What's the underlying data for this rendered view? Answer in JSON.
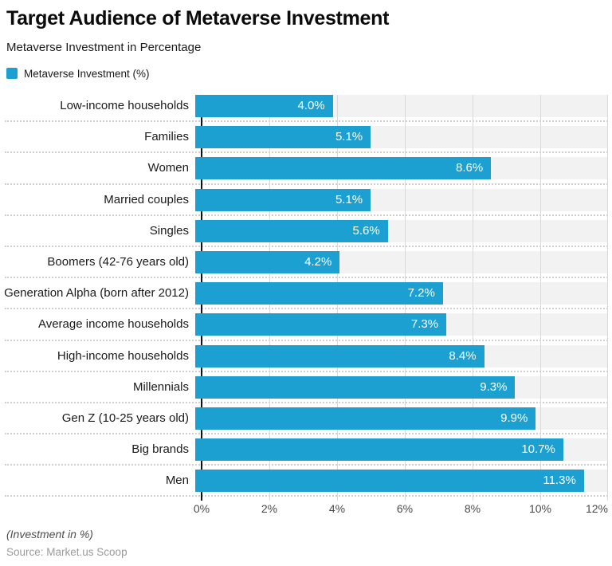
{
  "header": {
    "title": "Target Audience of Metaverse Investment",
    "subtitle": "Metaverse Investment in Percentage",
    "legend_label": "Metaverse Investment (%)"
  },
  "chart_data": {
    "type": "bar",
    "orientation": "horizontal",
    "title": "Target Audience of Metaverse Investment",
    "subtitle": "Metaverse Investment in Percentage",
    "series_name": "Metaverse Investment (%)",
    "categories": [
      "Low-income households",
      "Families",
      "Women",
      "Married couples",
      "Singles",
      "Boomers (42-76 years old)",
      "Generation Alpha (born after 2012)",
      "Average income households",
      "High-income households",
      "Millennials",
      "Gen Z (10-25 years old)",
      "Big brands",
      "Men"
    ],
    "values": [
      4.0,
      5.1,
      8.6,
      5.1,
      5.6,
      4.2,
      7.2,
      7.3,
      8.4,
      9.3,
      9.9,
      10.7,
      11.3
    ],
    "value_labels": [
      "4.0%",
      "5.1%",
      "8.6%",
      "5.1%",
      "5.6%",
      "4.2%",
      "7.2%",
      "7.3%",
      "8.4%",
      "9.3%",
      "9.9%",
      "10.7%",
      "11.3%"
    ],
    "x_ticks": [
      "0%",
      "2%",
      "4%",
      "6%",
      "8%",
      "10%",
      "12%"
    ],
    "xlim": [
      0,
      12
    ],
    "xmax": 12,
    "grid": true,
    "legend_position": "top-left",
    "bar_color": "#1c9fd1",
    "row_band_color": "#f2f2f2",
    "gridline_color": "#d9d9d9"
  },
  "footer": {
    "note": "(Investment in %)",
    "source": "Source: Market.us Scoop"
  }
}
